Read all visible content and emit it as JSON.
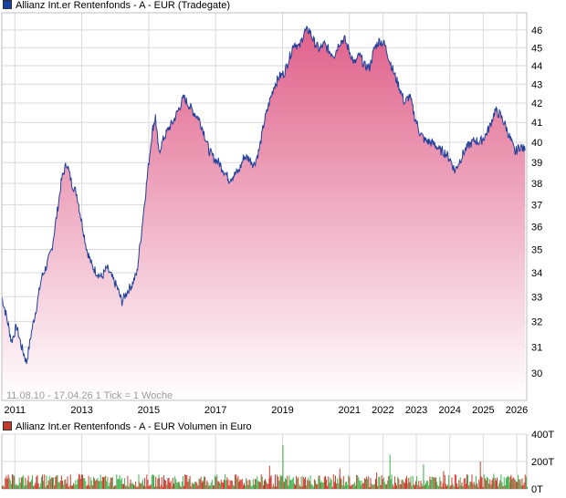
{
  "price_legend": "Allianz Int.er Rentenfonds - A - EUR (Tradegate)",
  "volume_legend": "Allianz Int.er Rentenfonds - A - EUR Volumen in Euro",
  "note": "11.08.10 - 17.04.26   1 Tick = 1 Woche",
  "colors": {
    "price_line": "#1f3f9a",
    "area_top": "#e0608a",
    "area_bottom": "#ffffff",
    "grid": "#d9d9d9",
    "vol_up": "#3cb44b",
    "vol_down": "#d0392b"
  },
  "chart_data": [
    {
      "type": "area",
      "title": "Allianz Int.er Rentenfonds - A - EUR (Tradegate)",
      "y_scale": "log",
      "ylim": [
        29,
        47
      ],
      "xlim": [
        2010.61,
        2026.3
      ],
      "x_ticks": [
        "2011",
        "2013",
        "2015",
        "2017",
        "2019",
        "2021",
        "2022",
        "2023",
        "2024",
        "2025",
        "2026"
      ],
      "y_ticks": [
        30,
        31,
        32,
        33,
        34,
        35,
        36,
        37,
        38,
        39,
        40,
        41,
        42,
        43,
        44,
        45,
        46
      ],
      "grid": true,
      "series": [
        {
          "name": "Allianz Int.er Rentenfonds - A - EUR (Tradegate)",
          "x": [
            2010.61,
            2010.75,
            2010.9,
            2011.05,
            2011.2,
            2011.35,
            2011.5,
            2011.65,
            2011.8,
            2011.95,
            2012.1,
            2012.25,
            2012.4,
            2012.55,
            2012.7,
            2012.85,
            2013.0,
            2013.15,
            2013.3,
            2013.45,
            2013.6,
            2013.75,
            2013.9,
            2014.05,
            2014.2,
            2014.35,
            2014.5,
            2014.65,
            2014.8,
            2014.95,
            2015.1,
            2015.2,
            2015.3,
            2015.45,
            2015.6,
            2015.75,
            2015.9,
            2016.05,
            2016.2,
            2016.35,
            2016.5,
            2016.65,
            2016.8,
            2016.95,
            2017.1,
            2017.25,
            2017.4,
            2017.55,
            2017.7,
            2017.85,
            2018.0,
            2018.15,
            2018.3,
            2018.45,
            2018.6,
            2018.75,
            2018.9,
            2019.05,
            2019.2,
            2019.35,
            2019.5,
            2019.65,
            2019.8,
            2019.95,
            2020.1,
            2020.25,
            2020.4,
            2020.55,
            2020.7,
            2020.85,
            2021.0,
            2021.15,
            2021.3,
            2021.45,
            2021.6,
            2021.75,
            2021.9,
            2022.05,
            2022.2,
            2022.35,
            2022.5,
            2022.65,
            2022.8,
            2022.95,
            2023.1,
            2023.25,
            2023.4,
            2023.55,
            2023.7,
            2023.85,
            2024.0,
            2024.15,
            2024.3,
            2024.45,
            2024.6,
            2024.75,
            2024.9,
            2025.05,
            2025.2,
            2025.35,
            2025.5,
            2025.65,
            2025.8,
            2025.95,
            2026.1,
            2026.25
          ],
          "values": [
            33.0,
            32.2,
            31.2,
            31.8,
            31.0,
            30.4,
            31.6,
            32.6,
            33.8,
            34.3,
            35.0,
            36.5,
            38.2,
            39.0,
            38.0,
            37.5,
            36.2,
            35.0,
            34.3,
            34.0,
            33.8,
            34.2,
            33.8,
            33.4,
            32.8,
            33.2,
            33.5,
            34.0,
            36.0,
            38.2,
            40.5,
            41.3,
            39.5,
            40.2,
            40.7,
            41.1,
            41.7,
            42.3,
            41.9,
            41.5,
            41.2,
            40.5,
            39.6,
            39.2,
            39.0,
            38.6,
            38.2,
            38.4,
            38.6,
            39.3,
            39.2,
            38.9,
            39.6,
            41.0,
            42.0,
            42.9,
            43.4,
            43.6,
            44.4,
            45.3,
            45.0,
            45.9,
            46.0,
            45.3,
            44.9,
            45.2,
            44.8,
            44.6,
            45.3,
            45.5,
            44.8,
            44.1,
            44.6,
            44.0,
            43.9,
            45.0,
            45.4,
            45.2,
            44.3,
            43.5,
            42.8,
            42.0,
            42.4,
            41.3,
            40.5,
            40.1,
            40.0,
            39.9,
            39.6,
            39.5,
            39.2,
            38.6,
            39.1,
            39.6,
            39.9,
            40.1,
            40.0,
            40.3,
            40.8,
            41.6,
            41.4,
            40.9,
            40.2,
            39.5,
            39.8,
            39.6
          ]
        }
      ]
    },
    {
      "type": "bar",
      "title": "Allianz Int.er Rentenfonds - A - EUR Volumen in Euro",
      "ylim": [
        0,
        400
      ],
      "y_ticks": [
        "0T",
        "200T",
        "400T"
      ],
      "grid": true,
      "series": [
        {
          "name": "Allianz Int.er Rentenfonds - A - EUR Volumen in Euro",
          "x": [
            2011.0,
            2011.6,
            2012.4,
            2012.9,
            2013.5,
            2014.2,
            2014.8,
            2015.3,
            2015.9,
            2016.6,
            2017.1,
            2017.7,
            2018.2,
            2018.6,
            2019.0,
            2019.6,
            2020.1,
            2020.7,
            2021.3,
            2021.8,
            2022.2,
            2022.7,
            2023.2,
            2023.8,
            2024.3,
            2024.9,
            2025.3,
            2025.8,
            2026.1
          ],
          "values": [
            30,
            45,
            25,
            110,
            40,
            35,
            50,
            80,
            45,
            60,
            40,
            55,
            70,
            170,
            320,
            90,
            75,
            150,
            60,
            120,
            250,
            95,
            180,
            130,
            85,
            200,
            110,
            90,
            70
          ]
        }
      ]
    }
  ]
}
